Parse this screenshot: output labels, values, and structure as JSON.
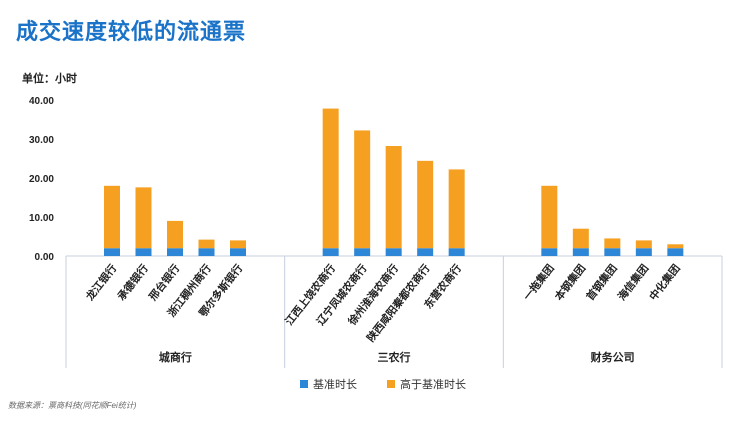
{
  "title": "成交速度较低的流通票",
  "unit_label": "单位：小时",
  "source": "数据来源：票商科技(同花顺Fei统计)",
  "legend": {
    "base_label": "基准时长",
    "extra_label": "高于基准时长"
  },
  "colors": {
    "base": "#2e86d6",
    "extra": "#f5a020",
    "title": "#1a73c8"
  },
  "chart_data": {
    "type": "bar",
    "stacked": true,
    "title": "成交速度较低的流通票",
    "ylabel": "单位：小时",
    "ylim": [
      0,
      40
    ],
    "yticks": [
      "0.00",
      "10.00",
      "20.00",
      "30.00",
      "40.00"
    ],
    "groups": [
      "城商行",
      "三农行",
      "财务公司"
    ],
    "categories": [
      "龙江银行",
      "承德银行",
      "邢台银行",
      "浙江稠州商行",
      "鄂尔多斯银行",
      "江西上饶农商行",
      "辽宁凤城农商行",
      "徐州淮海农商行",
      "陕西咸阳秦都农商行",
      "东营农商行",
      "一拖集团",
      "本钢集团",
      "首钢集团",
      "海信集团",
      "中化集团"
    ],
    "category_group": [
      0,
      0,
      0,
      0,
      0,
      1,
      1,
      1,
      1,
      1,
      2,
      2,
      2,
      2,
      2
    ],
    "series": [
      {
        "name": "基准时长",
        "values": [
          2,
          2,
          2,
          2,
          2,
          2,
          2,
          2,
          2,
          2,
          2,
          2,
          2,
          2,
          2
        ]
      },
      {
        "name": "高于基准时长",
        "values": [
          16,
          15.6,
          7,
          2.2,
          2,
          35.8,
          30.2,
          26.2,
          22.4,
          20.2,
          16,
          5,
          2.5,
          2,
          1
        ]
      }
    ]
  }
}
